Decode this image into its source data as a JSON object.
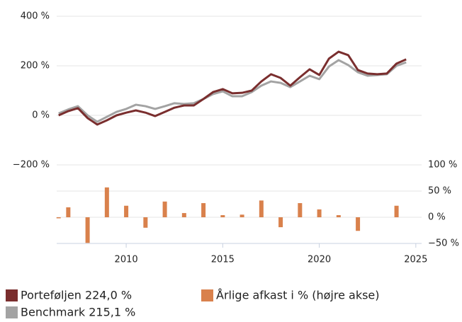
{
  "chart_data": {
    "type": "line",
    "x": [
      2006.5,
      2007,
      2007.5,
      2008,
      2008.5,
      2009,
      2009.5,
      2010,
      2010.5,
      2011,
      2011.5,
      2012,
      2012.5,
      2013,
      2013.5,
      2014,
      2014.5,
      2015,
      2015.5,
      2016,
      2016.5,
      2017,
      2017.5,
      2018,
      2018.5,
      2019,
      2019.5,
      2020,
      2020.5,
      2021,
      2021.5,
      2022,
      2022.5,
      2023,
      2023.5,
      2024,
      2024.5
    ],
    "series": [
      {
        "name": "Porteføljen 224,0 %",
        "color": "#7a2e2e",
        "axis": "y",
        "values": [
          0,
          17,
          29,
          -11,
          -37,
          -20,
          0,
          11,
          20,
          11,
          -3,
          14,
          31,
          40,
          40,
          66,
          94,
          106,
          89,
          91,
          100,
          137,
          166,
          151,
          120,
          154,
          186,
          163,
          229,
          257,
          243,
          183,
          169,
          166,
          169,
          209,
          226
        ]
      },
      {
        "name": "Benchmark 215,1 %",
        "color": "#a3a3a3",
        "axis": "y",
        "values": [
          8,
          24,
          37,
          0,
          -26,
          -6,
          14,
          26,
          43,
          37,
          26,
          37,
          49,
          46,
          49,
          66,
          86,
          97,
          77,
          77,
          94,
          120,
          137,
          131,
          114,
          137,
          160,
          146,
          197,
          223,
          203,
          174,
          160,
          163,
          166,
          200,
          214
        ]
      },
      {
        "name": "Årlige afkast i % (højre akse)",
        "color": "#d9814c",
        "axis": "y2",
        "type": "bar",
        "x": [
          2006.5,
          2007,
          2008,
          2009,
          2010,
          2011,
          2012,
          2013,
          2014,
          2015,
          2016,
          2017,
          2018,
          2019,
          2020,
          2021,
          2022,
          2024
        ],
        "values": [
          -2,
          19,
          -49,
          57,
          22,
          -20,
          30,
          8,
          27,
          4,
          5,
          32,
          -19,
          27,
          15,
          4,
          -26,
          22
        ]
      }
    ],
    "xlim": [
      2006.4,
      2025.3
    ],
    "xticks": [
      2010,
      2015,
      2020,
      2025
    ],
    "ylim": [
      -200,
      400
    ],
    "yticks": [
      {
        "value": 400,
        "label": "400 %"
      },
      {
        "value": 200,
        "label": "200 %"
      },
      {
        "value": 0,
        "label": "0 %"
      },
      {
        "value": -200,
        "label": "−200 %"
      }
    ],
    "y2lim": [
      -50,
      100
    ],
    "y2ticks": [
      {
        "value": 100,
        "label": "100 %"
      },
      {
        "value": 50,
        "label": "50 %"
      },
      {
        "value": 0,
        "label": "0 %"
      },
      {
        "value": -50,
        "label": "−50 %"
      }
    ],
    "grid": true
  }
}
